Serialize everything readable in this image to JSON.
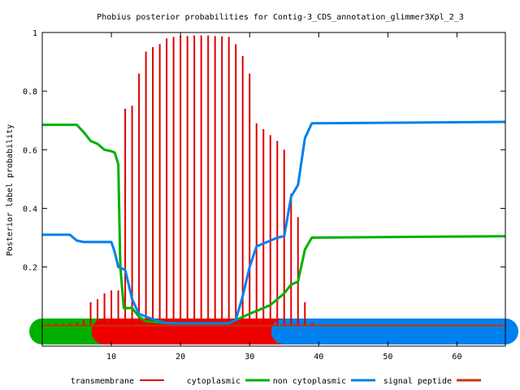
{
  "chart_data": {
    "type": "line",
    "title": "Phobius posterior probabilities for Contig-3_CDS_annotation_glimmer3Xpl_2_3",
    "xlabel": "",
    "ylabel": "Posterior label probability",
    "xlim": [
      0,
      67
    ],
    "ylim": [
      -0.07,
      1
    ],
    "x_ticks": [
      10,
      20,
      30,
      40,
      50,
      60
    ],
    "y_ticks": [
      0.2,
      0.4,
      0.6,
      0.8,
      1
    ],
    "y_tick_labels": [
      "0.2",
      "0.4",
      "0.6",
      "0.8",
      "1"
    ],
    "grid": false,
    "legend_position": "bottom",
    "topology_bar": {
      "y": -0.02,
      "segments": [
        {
          "label": "cytoplasmic",
          "start": 0,
          "end": 9,
          "color": "#00b000"
        },
        {
          "label": "transmembrane",
          "start": 9,
          "end": 35,
          "color": "#ee0000"
        },
        {
          "label": "non cytoplasmic",
          "start": 35,
          "end": 67,
          "color": "#0080ee"
        }
      ]
    },
    "series": [
      {
        "name": "transmembrane",
        "style": "impulses",
        "color": "#dd0000",
        "x": [
          1,
          2,
          3,
          4,
          5,
          6,
          7,
          8,
          9,
          10,
          11,
          12,
          13,
          14,
          15,
          16,
          17,
          18,
          19,
          20,
          21,
          22,
          23,
          24,
          25,
          26,
          27,
          28,
          29,
          30,
          31,
          32,
          33,
          34,
          35,
          36,
          37,
          38,
          39
        ],
        "values": [
          0.005,
          0.005,
          0.005,
          0.007,
          0.01,
          0.02,
          0.08,
          0.09,
          0.11,
          0.12,
          0.12,
          0.74,
          0.75,
          0.86,
          0.935,
          0.95,
          0.96,
          0.98,
          0.985,
          0.988,
          0.988,
          0.99,
          0.99,
          0.99,
          0.988,
          0.987,
          0.985,
          0.96,
          0.92,
          0.86,
          0.69,
          0.67,
          0.65,
          0.63,
          0.6,
          0.45,
          0.37,
          0.08,
          0.01
        ]
      },
      {
        "name": "cytoplasmic",
        "style": "line",
        "color": "#00b000",
        "x": [
          0,
          5,
          6,
          7,
          8,
          9,
          10,
          10.5,
          11,
          11.3,
          11.8,
          13,
          14,
          15,
          17,
          20,
          27,
          30,
          33,
          35,
          36,
          37,
          38,
          39,
          67
        ],
        "values": [
          0.685,
          0.685,
          0.66,
          0.63,
          0.62,
          0.6,
          0.595,
          0.59,
          0.55,
          0.2,
          0.06,
          0.06,
          0.03,
          0.015,
          0.01,
          0.008,
          0.008,
          0.04,
          0.07,
          0.11,
          0.14,
          0.15,
          0.26,
          0.3,
          0.305
        ]
      },
      {
        "name": "non cytoplasmic",
        "style": "line",
        "color": "#0080ee",
        "x": [
          0,
          4,
          5,
          6,
          10,
          10.5,
          11,
          11.5,
          12,
          13,
          14,
          15,
          17,
          18,
          20,
          27,
          28,
          29,
          30,
          31,
          32,
          33,
          34,
          35,
          36,
          37,
          38,
          39,
          67
        ],
        "values": [
          0.31,
          0.31,
          0.29,
          0.285,
          0.285,
          0.25,
          0.2,
          0.195,
          0.19,
          0.09,
          0.04,
          0.03,
          0.015,
          0.008,
          0.008,
          0.008,
          0.02,
          0.1,
          0.2,
          0.27,
          0.28,
          0.29,
          0.3,
          0.305,
          0.44,
          0.48,
          0.64,
          0.69,
          0.695
        ]
      },
      {
        "name": "signal peptide",
        "style": "line",
        "color": "#cc3300",
        "x": [
          0,
          67
        ],
        "values": [
          0.0,
          0.0
        ]
      }
    ]
  }
}
